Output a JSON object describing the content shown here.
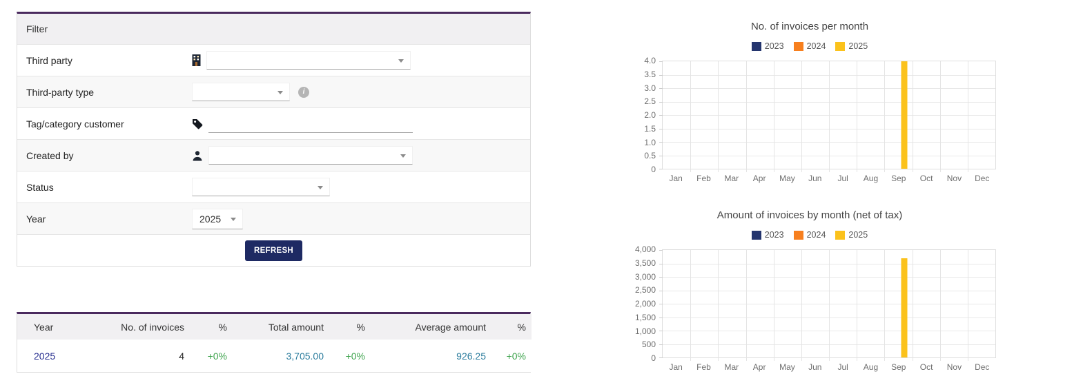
{
  "colors": {
    "accent_purple": "#4a2a5e",
    "button_navy": "#1e2a63",
    "link_navy": "#262d8f",
    "positive_green": "#3fa44e",
    "amount_teal": "#2b7c9d",
    "series_2023": "#24356e",
    "series_2024": "#f77f1e",
    "series_2025": "#fbc21c"
  },
  "icons": {
    "third_party": "building-icon",
    "tag_category": "tag-icon",
    "created_by": "user-icon",
    "type_help": "info-icon",
    "dropdown": "chevron-down-icon"
  },
  "filter": {
    "title": "Filter",
    "rows": [
      {
        "label": "Third party"
      },
      {
        "label": "Third-party type"
      },
      {
        "label": "Tag/category customer"
      },
      {
        "label": "Created by"
      },
      {
        "label": "Status"
      },
      {
        "label": "Year",
        "value": "2025"
      }
    ],
    "refresh_label": "REFRESH"
  },
  "summary_table": {
    "headers": [
      "Year",
      "No. of invoices",
      "%",
      "Total amount",
      "%",
      "Average amount",
      "%"
    ],
    "rows": [
      [
        "2025",
        "4",
        "+0%",
        "3,705.00",
        "+0%",
        "926.25",
        "+0%"
      ]
    ]
  },
  "chart_data": [
    {
      "type": "bar",
      "title": "No. of invoices per month",
      "categories": [
        "Jan",
        "Feb",
        "Mar",
        "Apr",
        "May",
        "Jun",
        "Jul",
        "Aug",
        "Sep",
        "Oct",
        "Nov",
        "Dec"
      ],
      "series": [
        {
          "name": "2023",
          "color": "#24356e",
          "values": [
            0,
            0,
            0,
            0,
            0,
            0,
            0,
            0,
            0,
            0,
            0,
            0
          ]
        },
        {
          "name": "2024",
          "color": "#f77f1e",
          "values": [
            0,
            0,
            0,
            0,
            0,
            0,
            0,
            0,
            0,
            0,
            0,
            0
          ]
        },
        {
          "name": "2025",
          "color": "#fbc21c",
          "values": [
            0,
            0,
            0,
            0,
            0,
            0,
            0,
            0,
            4,
            0,
            0,
            0
          ]
        }
      ],
      "xlabel": "",
      "ylabel": "",
      "ylim": [
        0,
        4
      ],
      "ytick_step": 0.5,
      "y_decimals": 1,
      "grid": true,
      "legend_position": "top"
    },
    {
      "type": "bar",
      "title": "Amount of invoices by month (net of tax)",
      "categories": [
        "Jan",
        "Feb",
        "Mar",
        "Apr",
        "May",
        "Jun",
        "Jul",
        "Aug",
        "Sep",
        "Oct",
        "Nov",
        "Dec"
      ],
      "series": [
        {
          "name": "2023",
          "color": "#24356e",
          "values": [
            0,
            0,
            0,
            0,
            0,
            0,
            0,
            0,
            0,
            0,
            0,
            0
          ]
        },
        {
          "name": "2024",
          "color": "#f77f1e",
          "values": [
            0,
            0,
            0,
            0,
            0,
            0,
            0,
            0,
            0,
            0,
            0,
            0
          ]
        },
        {
          "name": "2025",
          "color": "#fbc21c",
          "values": [
            0,
            0,
            0,
            0,
            0,
            0,
            0,
            0,
            3705,
            0,
            0,
            0
          ]
        }
      ],
      "xlabel": "",
      "ylabel": "",
      "ylim": [
        0,
        4000
      ],
      "ytick_step": 500,
      "y_decimals": 0,
      "grid": true,
      "legend_position": "top"
    }
  ]
}
